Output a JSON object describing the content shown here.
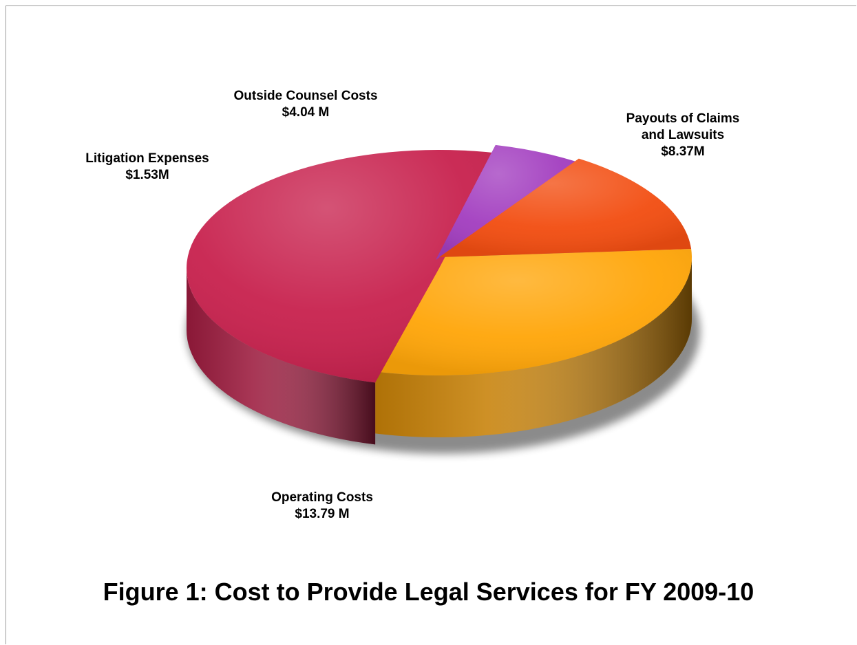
{
  "chart_data": {
    "type": "pie",
    "title": "Figure 1: Cost to Provide Legal Services for FY 2009-10",
    "slices": [
      {
        "label_lines": [
          "Payouts of Claims",
          "and Lawsuits",
          "$8.37M"
        ],
        "value": 8.37,
        "color": "#FFA60A"
      },
      {
        "label_lines": [
          "Operating Costs",
          "$13.79 M"
        ],
        "value": 13.79,
        "color": "#C8234F"
      },
      {
        "label_lines": [
          "Litigation Expenses",
          "$1.53M"
        ],
        "value": 1.53,
        "color": "#A33FC0"
      },
      {
        "label_lines": [
          "Outside Counsel Costs",
          "$4.04 M"
        ],
        "value": 4.04,
        "color": "#F24E12"
      }
    ],
    "legend": "none",
    "style": "3d-exploded-pie"
  }
}
